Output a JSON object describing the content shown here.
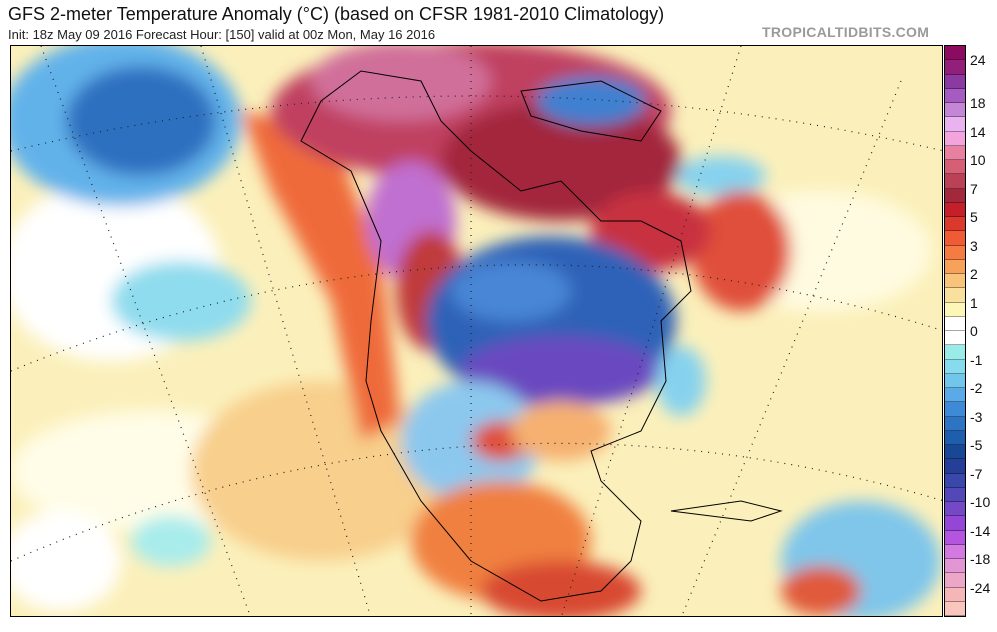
{
  "header": {
    "title": "GFS 2-meter Temperature Anomaly (°C) (based on CFSR 1981-2010 Climatology)",
    "subtitle": "Init: 18z May 09 2016   Forecast Hour: [150]   valid at 00z Mon, May 16 2016",
    "watermark": "TROPICALTIDBITS.COM"
  },
  "colorbar": {
    "unit": "°C",
    "colors": [
      "#8c0a5f",
      "#92207a",
      "#8a3aa0",
      "#a65bc1",
      "#c487d6",
      "#e9b3f0",
      "#f4a4dc",
      "#e8809f",
      "#d75f75",
      "#bb4158",
      "#a3283c",
      "#c51f2a",
      "#db392b",
      "#ee5b35",
      "#f47c42",
      "#f7a25a",
      "#f8c47c",
      "#f9e09c",
      "#fcf6b8",
      "#ffffff",
      "#ffffff",
      "#9aece8",
      "#86dcee",
      "#72c6ec",
      "#5aaae8",
      "#3f8ad6",
      "#2d74c2",
      "#1f5ead",
      "#174795",
      "#253f98",
      "#3948aa",
      "#5448b8",
      "#7548c6",
      "#9446d6",
      "#b455e0",
      "#d37ae0",
      "#e296d4",
      "#eca6c8",
      "#f5b6b8",
      "#f8c6bc"
    ],
    "labels": [
      {
        "text": "24",
        "boundary": 1
      },
      {
        "text": "18",
        "boundary": 4
      },
      {
        "text": "14",
        "boundary": 6
      },
      {
        "text": "10",
        "boundary": 8
      },
      {
        "text": "7",
        "boundary": 10
      },
      {
        "text": "5",
        "boundary": 12
      },
      {
        "text": "3",
        "boundary": 14
      },
      {
        "text": "2",
        "boundary": 16
      },
      {
        "text": "1",
        "boundary": 18
      },
      {
        "text": "0",
        "boundary": 20
      },
      {
        "text": "-1",
        "boundary": 22
      },
      {
        "text": "-2",
        "boundary": 24
      },
      {
        "text": "-3",
        "boundary": 26
      },
      {
        "text": "-5",
        "boundary": 28
      },
      {
        "text": "-7",
        "boundary": 30
      },
      {
        "text": "-10",
        "boundary": 32
      },
      {
        "text": "-14",
        "boundary": 34
      },
      {
        "text": "-18",
        "boundary": 36
      },
      {
        "text": "-24",
        "boundary": 38
      }
    ]
  }
}
